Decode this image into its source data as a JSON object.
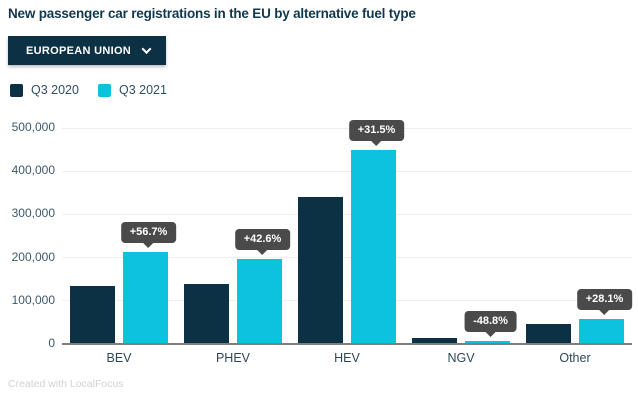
{
  "header": {
    "title": "New passenger car registrations in the EU by alternative fuel type"
  },
  "controls": {
    "region_dropdown": {
      "label": "EUROPEAN UNION"
    }
  },
  "chart_data": {
    "type": "bar",
    "title": "New passenger car registrations in the EU by alternative fuel type",
    "categories": [
      "BEV",
      "PHEV",
      "HEV",
      "NGV",
      "Other"
    ],
    "series": [
      {
        "name": "Q3 2020",
        "color": "#0d3144",
        "values": [
          135000,
          138000,
          341000,
          13500,
          46000
        ]
      },
      {
        "name": "Q3 2021",
        "color": "#0cc2de",
        "values": [
          212000,
          197000,
          449000,
          6900,
          58900
        ]
      }
    ],
    "change_labels": [
      "+56.7%",
      "+42.6%",
      "+31.5%",
      "-48.8%",
      "+28.1%"
    ],
    "xlabel": "",
    "ylabel": "",
    "ylim": [
      0,
      500000
    ],
    "yticks": [
      "0",
      "100,000",
      "200,000",
      "300,000",
      "400,000",
      "500,000"
    ],
    "grid": true,
    "legend_position": "top-left"
  },
  "footer": {
    "credit": "Created with LocalFocus"
  }
}
